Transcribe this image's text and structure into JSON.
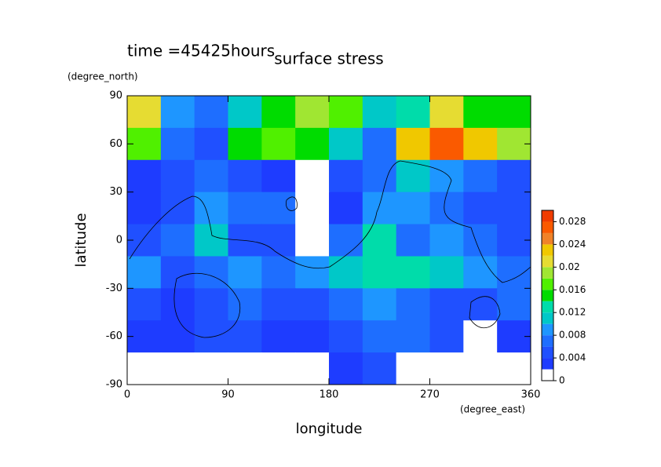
{
  "chart_data": {
    "type": "heatmap",
    "title": "surface stress",
    "subtitle": "time =45425hours",
    "x_label": "longitude",
    "y_label": "latitude",
    "x_unit": "(degree_east)",
    "y_unit": "(degree_north)",
    "xlim": [
      0,
      360
    ],
    "xticks": [
      0,
      90,
      180,
      270,
      360
    ],
    "ylim": [
      -90,
      90
    ],
    "yticks": [
      -90,
      -60,
      -30,
      0,
      30,
      60,
      90
    ],
    "x": [
      15,
      45,
      75,
      105,
      135,
      165,
      195,
      225,
      255,
      285,
      315,
      345
    ],
    "y": [
      80,
      60,
      40,
      20,
      0,
      -20,
      -40,
      -60,
      -80
    ],
    "z": [
      [
        0.02,
        0.008,
        0.006,
        0.01,
        0.014,
        0.018,
        0.016,
        0.01,
        0.012,
        0.02,
        0.014,
        0.014
      ],
      [
        0.016,
        0.006,
        0.004,
        0.014,
        0.016,
        0.014,
        0.01,
        0.006,
        0.022,
        0.026,
        0.022,
        0.018
      ],
      [
        0.002,
        0.004,
        0.006,
        0.004,
        0.002,
        0,
        0.004,
        0.006,
        0.01,
        0.008,
        0.006,
        0.004
      ],
      [
        0.002,
        0.004,
        0.008,
        0.006,
        0.006,
        0,
        0.002,
        0.008,
        0.008,
        0.006,
        0.004,
        0.004
      ],
      [
        0.004,
        0.006,
        0.01,
        0.004,
        0.004,
        0,
        0.006,
        0.012,
        0.006,
        0.008,
        0.006,
        0.004
      ],
      [
        0.008,
        0.004,
        0.006,
        0.008,
        0.006,
        0.008,
        0.01,
        0.012,
        0.012,
        0.01,
        0.008,
        0.006
      ],
      [
        0.004,
        0.002,
        0.004,
        0.006,
        0.004,
        0.004,
        0.006,
        0.008,
        0.006,
        0.004,
        0.004,
        0.006
      ],
      [
        0.002,
        0.002,
        0.004,
        0.004,
        0.002,
        0.002,
        0.004,
        0.006,
        0.006,
        0.004,
        0,
        0.002
      ],
      [
        0,
        0,
        0,
        0,
        0,
        0,
        0.002,
        0.004,
        0,
        0,
        0,
        0
      ]
    ],
    "levels": [
      0,
      0.002,
      0.004,
      0.006,
      0.008,
      0.01,
      0.012,
      0.014,
      0.016,
      0.018,
      0.02,
      0.022,
      0.024,
      0.026,
      0.028,
      0.03
    ],
    "colors": [
      "#ffffff",
      "#1e3cff",
      "#2050ff",
      "#1e6eff",
      "#1e96ff",
      "#00c8c8",
      "#00dcaa",
      "#00dc00",
      "#50f000",
      "#a0e632",
      "#e6dc32",
      "#f0c800",
      "#f08228",
      "#fa5a00",
      "#f03c00"
    ],
    "colorbar_ticks": [
      0,
      0.004,
      0.008,
      0.012,
      0.016,
      0.02,
      0.024,
      0.028
    ]
  }
}
